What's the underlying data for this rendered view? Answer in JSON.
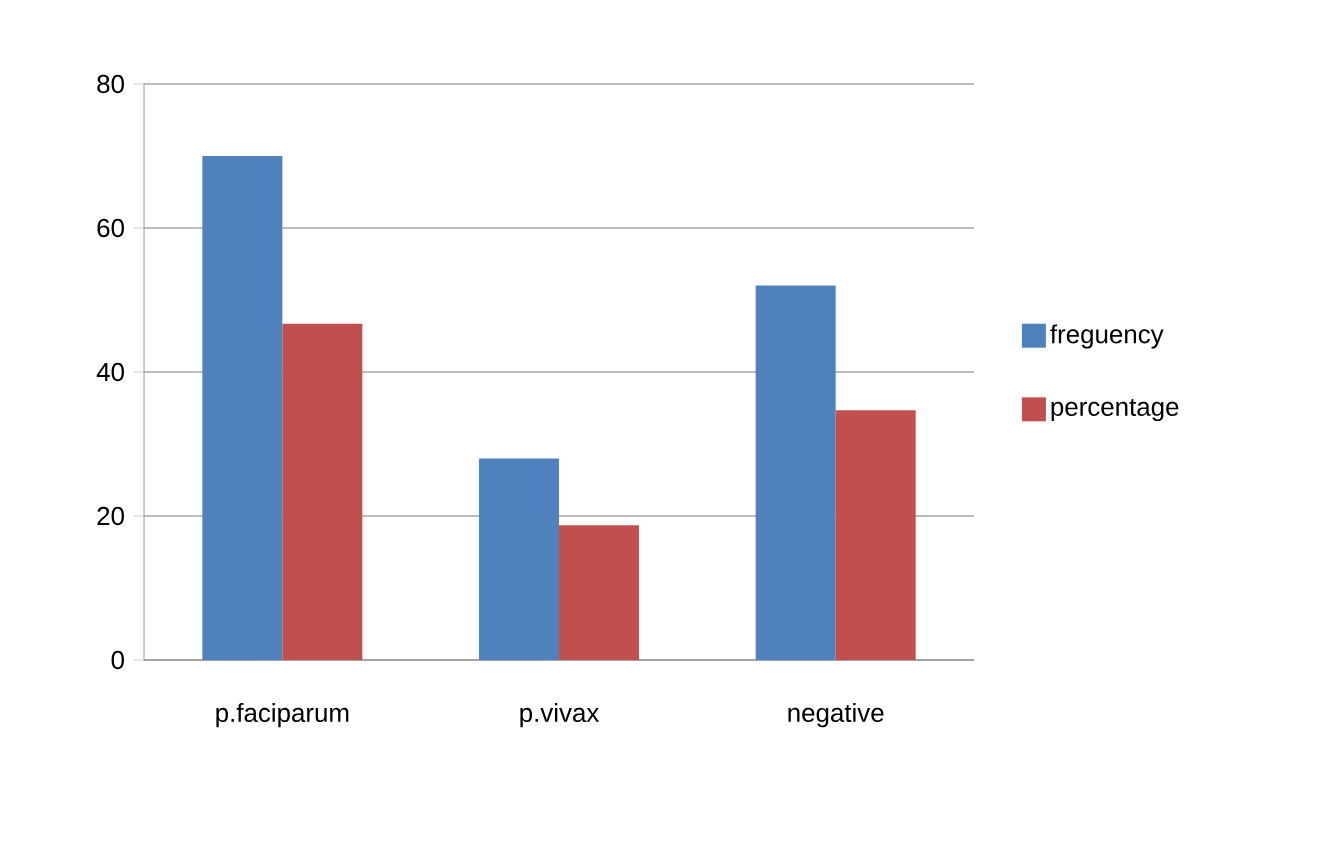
{
  "chart_data": {
    "type": "bar",
    "categories": [
      "p.faciparum",
      "p.vivax",
      "negative"
    ],
    "series": [
      {
        "name": "freguency",
        "color": "#4f81bd",
        "values": [
          70,
          28,
          52
        ]
      },
      {
        "name": "percentage",
        "color": "#c0504d",
        "values": [
          46.7,
          18.7,
          34.7
        ]
      }
    ],
    "ylim": [
      0,
      80
    ],
    "yticks": [
      0,
      20,
      40,
      60,
      80
    ],
    "grid": "y",
    "legend": "right"
  }
}
